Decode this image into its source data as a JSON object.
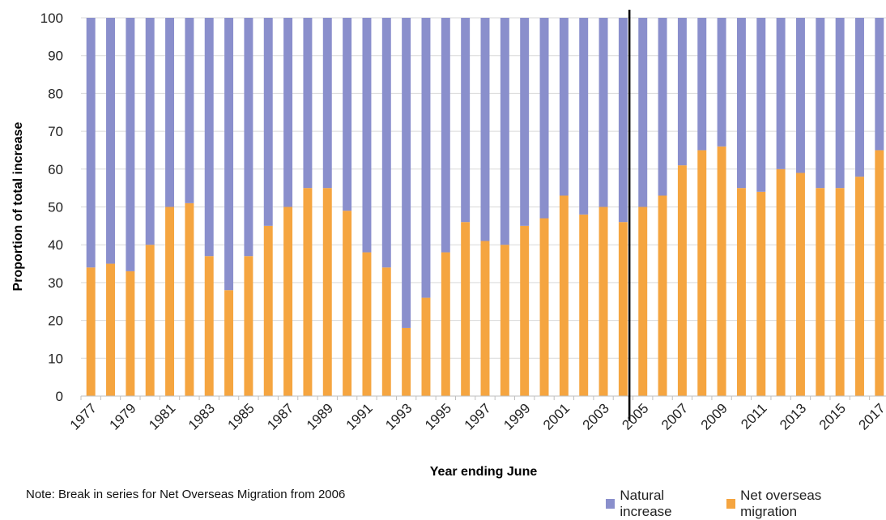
{
  "chart_data": {
    "type": "bar",
    "stacked": true,
    "title": "",
    "xlabel": "Year ending June",
    "ylabel": "Proportion of total increase",
    "ylim": [
      0,
      100
    ],
    "yticks": [
      0,
      10,
      20,
      30,
      40,
      50,
      60,
      70,
      80,
      90,
      100
    ],
    "categories": [
      "1977",
      "1978",
      "1979",
      "1980",
      "1981",
      "1982",
      "1983",
      "1984",
      "1985",
      "1986",
      "1987",
      "1988",
      "1989",
      "1990",
      "1991",
      "1992",
      "1993",
      "1994",
      "1995",
      "1996",
      "1997",
      "1998",
      "1999",
      "2000",
      "2001",
      "2002",
      "2003",
      "2004",
      "2005",
      "2006",
      "2007",
      "2008",
      "2009",
      "2010",
      "2011",
      "2012",
      "2013",
      "2014",
      "2015",
      "2016",
      "2017"
    ],
    "xtick_labels": [
      "1977",
      "1979",
      "1981",
      "1983",
      "1985",
      "1987",
      "1989",
      "1991",
      "1993",
      "1995",
      "1997",
      "1999",
      "2001",
      "2003",
      "2005",
      "2007",
      "2009",
      "2011",
      "2013",
      "2015",
      "2017"
    ],
    "series": [
      {
        "name": "Net overseas migration",
        "color": "#f5a540",
        "values": [
          34,
          35,
          33,
          40,
          50,
          51,
          37,
          28,
          37,
          45,
          50,
          55,
          55,
          49,
          38,
          34,
          18,
          26,
          38,
          46,
          41,
          40,
          45,
          47,
          53,
          48,
          50,
          46,
          50,
          53,
          61,
          65,
          66,
          55,
          54,
          60,
          59,
          55,
          55,
          58,
          65
        ]
      },
      {
        "name": "Natural increase",
        "color": "#8a8fcc",
        "values": [
          66,
          65,
          67,
          60,
          50,
          49,
          63,
          72,
          63,
          55,
          50,
          45,
          45,
          51,
          62,
          66,
          82,
          74,
          62,
          54,
          59,
          60,
          55,
          53,
          47,
          52,
          50,
          54,
          50,
          47,
          39,
          35,
          34,
          45,
          46,
          40,
          41,
          45,
          45,
          42,
          35
        ]
      }
    ],
    "break_after_category": "2004",
    "grid": true,
    "legend_position": "bottom-right",
    "note": "Note: Break in series for Net Overseas Migration from 2006"
  }
}
